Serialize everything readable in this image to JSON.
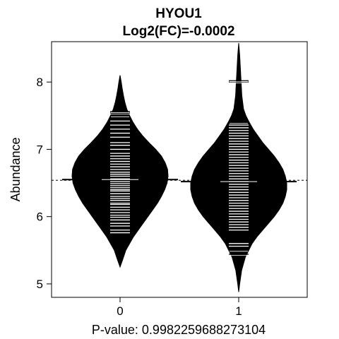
{
  "chart_data": {
    "type": "beanplot",
    "title": "HYOU1",
    "subtitle": "Log2(FC)=-0.0002",
    "xlabel": "P-value: 0.9982259688273104",
    "ylabel": "Abundance",
    "categories": [
      "0",
      "1"
    ],
    "ylim": [
      4.8,
      8.6
    ],
    "yticks": [
      "5",
      "6",
      "7",
      "8"
    ],
    "overall_mean": 6.54,
    "grid": false,
    "legend": "none",
    "colors": {
      "bean": "#000000",
      "line": "#ffffff",
      "background": "#ffffff"
    },
    "groups": [
      {
        "label": "0",
        "mean": 6.55,
        "range": [
          5.25,
          8.1
        ],
        "observations": [
          5.76,
          5.8,
          5.86,
          5.9,
          5.95,
          5.99,
          6.02,
          6.06,
          6.1,
          6.14,
          6.18,
          6.2,
          6.24,
          6.27,
          6.3,
          6.34,
          6.38,
          6.4,
          6.43,
          6.46,
          6.49,
          6.52,
          6.56,
          6.6,
          6.63,
          6.66,
          6.7,
          6.74,
          6.78,
          6.82,
          6.86,
          6.9,
          6.94,
          7.0,
          7.06,
          7.1,
          7.18,
          7.24,
          7.3,
          7.36,
          7.42,
          7.5,
          7.54,
          7.56
        ],
        "density": [
          [
            5.25,
            0.0
          ],
          [
            5.35,
            0.05
          ],
          [
            5.5,
            0.12
          ],
          [
            5.6,
            0.2
          ],
          [
            5.7,
            0.28
          ],
          [
            5.8,
            0.38
          ],
          [
            5.9,
            0.48
          ],
          [
            6.0,
            0.58
          ],
          [
            6.1,
            0.68
          ],
          [
            6.2,
            0.78
          ],
          [
            6.3,
            0.86
          ],
          [
            6.4,
            0.93
          ],
          [
            6.5,
            0.98
          ],
          [
            6.6,
            1.0
          ],
          [
            6.7,
            0.99
          ],
          [
            6.8,
            0.94
          ],
          [
            6.9,
            0.86
          ],
          [
            7.0,
            0.74
          ],
          [
            7.1,
            0.6
          ],
          [
            7.2,
            0.47
          ],
          [
            7.3,
            0.36
          ],
          [
            7.4,
            0.27
          ],
          [
            7.5,
            0.2
          ],
          [
            7.6,
            0.14
          ],
          [
            7.7,
            0.1
          ],
          [
            7.8,
            0.07
          ],
          [
            7.9,
            0.045
          ],
          [
            8.0,
            0.025
          ],
          [
            8.1,
            0.0
          ]
        ]
      },
      {
        "label": "1",
        "mean": 6.52,
        "range": [
          4.88,
          8.58
        ],
        "observations": [
          5.44,
          5.5,
          5.56,
          5.6,
          5.8,
          5.84,
          5.88,
          5.92,
          5.96,
          6.0,
          6.04,
          6.08,
          6.12,
          6.16,
          6.2,
          6.24,
          6.28,
          6.32,
          6.36,
          6.4,
          6.44,
          6.48,
          6.52,
          6.56,
          6.6,
          6.64,
          6.68,
          6.72,
          6.76,
          6.8,
          6.84,
          6.88,
          6.92,
          6.96,
          7.0,
          7.04,
          7.08,
          7.12,
          7.16,
          7.2,
          7.24,
          7.28,
          7.32,
          7.36,
          7.4,
          8.0,
          8.02
        ],
        "density": [
          [
            4.88,
            0.0
          ],
          [
            5.0,
            0.02
          ],
          [
            5.2,
            0.06
          ],
          [
            5.4,
            0.14
          ],
          [
            5.6,
            0.28
          ],
          [
            5.7,
            0.38
          ],
          [
            5.8,
            0.5
          ],
          [
            5.9,
            0.62
          ],
          [
            6.0,
            0.74
          ],
          [
            6.1,
            0.84
          ],
          [
            6.2,
            0.92
          ],
          [
            6.3,
            0.97
          ],
          [
            6.4,
            1.0
          ],
          [
            6.5,
            1.0
          ],
          [
            6.6,
            0.97
          ],
          [
            6.7,
            0.92
          ],
          [
            6.8,
            0.84
          ],
          [
            6.9,
            0.74
          ],
          [
            7.0,
            0.62
          ],
          [
            7.1,
            0.5
          ],
          [
            7.2,
            0.4
          ],
          [
            7.3,
            0.3
          ],
          [
            7.4,
            0.22
          ],
          [
            7.5,
            0.15
          ],
          [
            7.6,
            0.1
          ],
          [
            7.8,
            0.065
          ],
          [
            8.0,
            0.05
          ],
          [
            8.2,
            0.035
          ],
          [
            8.4,
            0.02
          ],
          [
            8.58,
            0.0
          ]
        ]
      }
    ]
  }
}
